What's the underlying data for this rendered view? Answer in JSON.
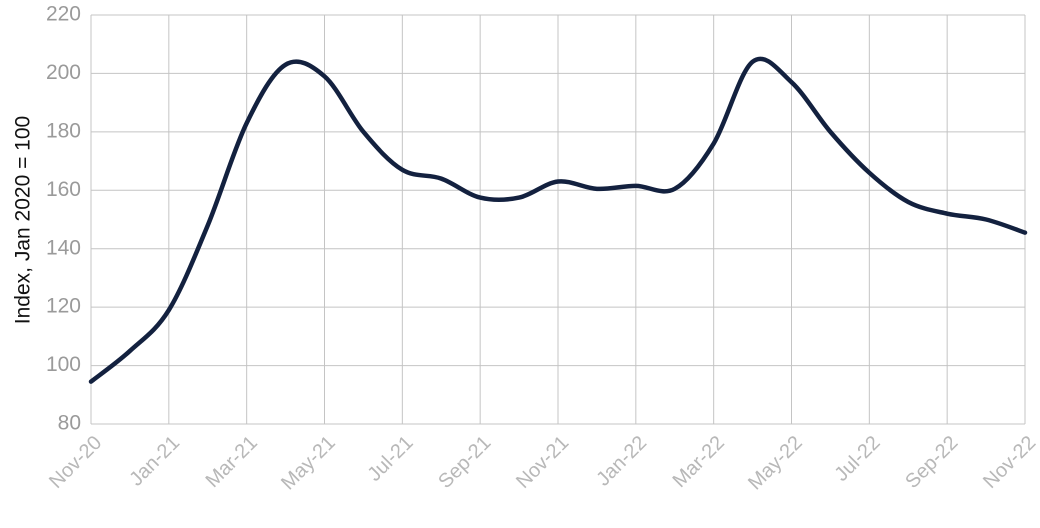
{
  "chart_data": {
    "type": "line",
    "y_label": "Index, Jan 2020 = 100",
    "categories": [
      "Nov-20",
      null,
      "Jan-21",
      null,
      "Mar-21",
      null,
      "May-21",
      null,
      "Jul-21",
      null,
      "Sep-21",
      null,
      "Nov-21",
      null,
      "Jan-22",
      null,
      "Mar-22",
      null,
      "May-22",
      null,
      "Jul-22",
      null,
      "Sep-22",
      null,
      "Nov-22"
    ],
    "series": [
      {
        "color": "#13213f",
        "values": [
          94.5,
          105,
          119,
          148,
          183,
          203,
          199,
          180,
          167,
          164,
          157.5,
          157.5,
          163,
          160.5,
          161.5,
          160.5,
          176,
          204,
          197,
          180,
          166,
          156,
          152,
          150,
          145.5
        ]
      }
    ],
    "ylim": [
      80,
      220
    ],
    "yticks": [
      80,
      100,
      120,
      140,
      160,
      180,
      200,
      220
    ],
    "grid": true
  }
}
